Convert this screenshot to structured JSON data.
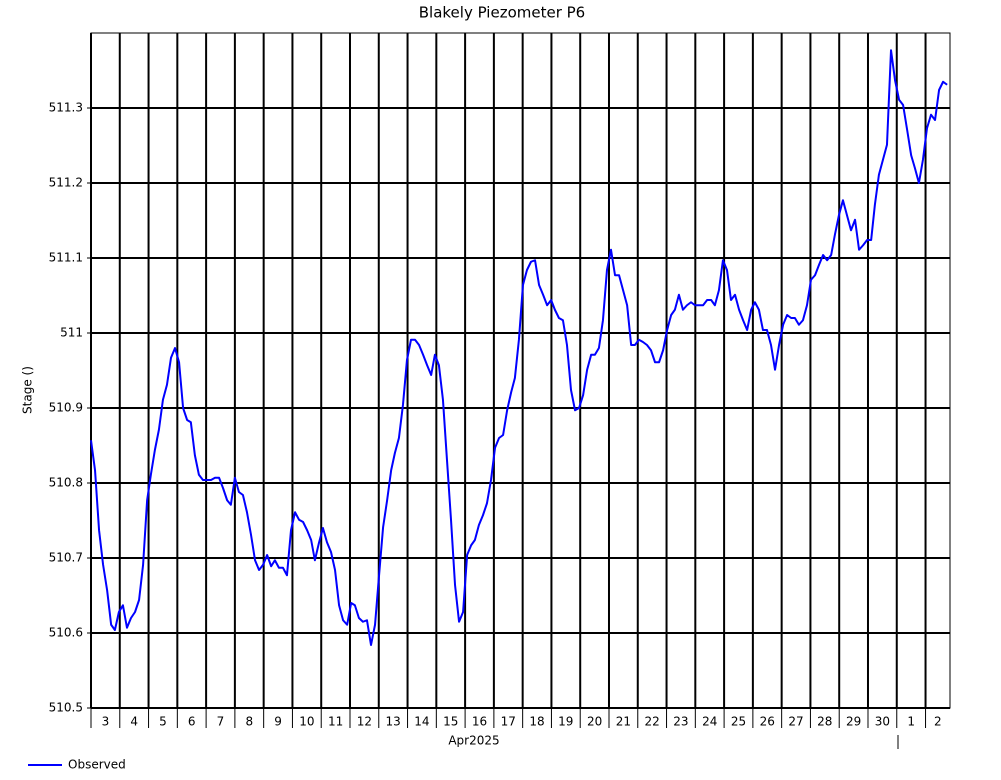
{
  "chart_data": {
    "type": "line",
    "title": "Blakely Piezometer P6",
    "ylabel": "Stage ()",
    "xlabel": "Apr2025",
    "grid": true,
    "legend": "bottom-left",
    "xlim": [
      3,
      32.85
    ],
    "ylim": [
      510.5,
      511.4
    ],
    "yticks": [
      510.5,
      510.6,
      510.7,
      510.8,
      510.9,
      511.0,
      511.1,
      511.2,
      511.3
    ],
    "xticks": [
      3,
      4,
      5,
      6,
      7,
      8,
      9,
      10,
      11,
      12,
      13,
      14,
      15,
      16,
      17,
      18,
      19,
      20,
      21,
      22,
      23,
      24,
      25,
      26,
      27,
      28,
      29,
      30,
      {
        "value": 31,
        "label": "1"
      },
      {
        "value": 32,
        "label": "2"
      }
    ],
    "x": [
      3.0,
      3.14,
      3.28,
      3.42,
      3.56,
      3.7,
      3.83,
      3.97,
      4.11,
      4.25,
      4.39,
      4.53,
      4.67,
      4.81,
      4.95,
      5.08,
      5.22,
      5.36,
      5.5,
      5.64,
      5.78,
      5.92,
      6.06,
      6.2,
      6.34,
      6.47,
      6.61,
      6.75,
      6.89,
      7.03,
      7.17,
      7.31,
      7.45,
      7.59,
      7.73,
      7.86,
      8.0,
      8.14,
      8.28,
      8.42,
      8.56,
      8.7,
      8.84,
      8.98,
      9.12,
      9.26,
      9.39,
      9.53,
      9.67,
      9.81,
      9.95,
      10.09,
      10.23,
      10.37,
      10.51,
      10.65,
      10.78,
      10.92,
      11.06,
      11.2,
      11.34,
      11.48,
      11.62,
      11.76,
      11.9,
      12.04,
      12.17,
      12.31,
      12.45,
      12.59,
      12.73,
      12.87,
      13.01,
      13.15,
      13.29,
      13.43,
      13.56,
      13.7,
      13.84,
      13.98,
      14.12,
      14.26,
      14.4,
      14.54,
      14.68,
      14.82,
      14.95,
      15.09,
      15.23,
      15.37,
      15.51,
      15.65,
      15.79,
      15.93,
      16.07,
      16.21,
      16.34,
      16.48,
      16.62,
      16.76,
      16.9,
      17.04,
      17.18,
      17.32,
      17.46,
      17.6,
      17.73,
      17.87,
      18.01,
      18.15,
      18.29,
      18.43,
      18.57,
      18.71,
      18.85,
      18.99,
      19.12,
      19.26,
      19.4,
      19.54,
      19.68,
      19.82,
      19.96,
      20.1,
      20.24,
      20.38,
      20.51,
      20.65,
      20.79,
      20.93,
      21.07,
      21.21,
      21.35,
      21.49,
      21.63,
      21.77,
      21.9,
      22.04,
      22.18,
      22.32,
      22.46,
      22.6,
      22.74,
      22.88,
      23.02,
      23.16,
      23.29,
      23.43,
      23.57,
      23.71,
      23.85,
      23.99,
      24.13,
      24.27,
      24.41,
      24.55,
      24.68,
      24.82,
      24.96,
      25.1,
      25.24,
      25.38,
      25.52,
      25.66,
      25.8,
      25.94,
      26.07,
      26.21,
      26.35,
      26.49,
      26.63,
      26.77,
      26.91,
      27.05,
      27.19,
      27.33,
      27.46,
      27.6,
      27.74,
      27.88,
      28.02,
      28.16,
      28.3,
      28.44,
      28.58,
      28.72,
      28.85,
      28.99,
      29.13,
      29.27,
      29.41,
      29.55,
      29.69,
      29.83,
      29.97,
      30.11,
      30.24,
      30.38,
      30.52,
      30.66,
      30.8,
      30.94,
      31.08,
      31.22,
      31.36,
      31.5,
      31.63,
      31.77,
      31.91,
      32.05,
      32.19,
      32.33,
      32.47,
      32.61,
      32.75
    ],
    "series": [
      {
        "name": "Observed",
        "color": "#0000ff",
        "values": [
          510.857,
          510.817,
          510.737,
          510.691,
          510.657,
          510.611,
          510.604,
          510.628,
          510.637,
          510.607,
          510.62,
          510.628,
          510.644,
          510.691,
          510.777,
          510.811,
          510.844,
          510.871,
          510.911,
          510.931,
          510.967,
          510.98,
          510.961,
          510.9,
          510.884,
          510.881,
          510.837,
          510.811,
          510.804,
          510.804,
          510.804,
          510.807,
          510.807,
          510.793,
          510.777,
          510.771,
          510.807,
          510.788,
          510.784,
          510.761,
          510.731,
          510.697,
          510.684,
          510.691,
          510.704,
          510.689,
          510.697,
          510.687,
          510.687,
          510.677,
          510.737,
          510.761,
          510.751,
          510.748,
          510.737,
          510.724,
          510.697,
          510.72,
          510.74,
          510.721,
          510.708,
          510.684,
          510.637,
          510.617,
          510.611,
          510.64,
          510.637,
          510.62,
          510.615,
          510.617,
          510.584,
          510.611,
          510.677,
          510.741,
          510.777,
          510.817,
          510.84,
          510.86,
          510.904,
          510.964,
          510.991,
          510.991,
          510.984,
          510.971,
          510.957,
          510.944,
          510.971,
          510.957,
          510.911,
          510.831,
          510.751,
          510.664,
          510.615,
          510.628,
          510.704,
          510.717,
          510.724,
          510.744,
          510.757,
          510.773,
          510.804,
          510.847,
          510.86,
          510.864,
          510.897,
          510.921,
          510.94,
          510.991,
          511.064,
          511.084,
          511.095,
          511.097,
          511.064,
          511.051,
          511.037,
          511.044,
          511.031,
          511.02,
          511.017,
          510.984,
          510.924,
          510.897,
          510.9,
          510.917,
          510.951,
          510.971,
          510.971,
          510.98,
          511.017,
          511.084,
          511.111,
          511.077,
          511.077,
          511.057,
          511.037,
          510.984,
          510.984,
          510.991,
          510.988,
          510.984,
          510.977,
          510.961,
          510.961,
          510.977,
          511.004,
          511.024,
          511.031,
          511.051,
          511.031,
          511.037,
          511.041,
          511.037,
          511.037,
          511.037,
          511.044,
          511.044,
          511.037,
          511.057,
          511.097,
          511.084,
          511.044,
          511.051,
          511.031,
          511.017,
          511.004,
          511.031,
          511.041,
          511.031,
          511.004,
          511.004,
          510.984,
          510.951,
          510.984,
          511.011,
          511.024,
          511.02,
          511.02,
          511.011,
          511.017,
          511.037,
          511.071,
          511.077,
          511.091,
          511.104,
          511.097,
          511.104,
          511.131,
          511.157,
          511.177,
          511.157,
          511.137,
          511.151,
          511.111,
          511.117,
          511.124,
          511.124,
          511.171,
          511.211,
          511.231,
          511.251,
          511.377,
          511.337,
          511.311,
          511.304,
          511.271,
          511.237,
          511.22,
          511.2,
          511.231,
          511.273,
          511.291,
          511.284,
          511.324,
          511.335,
          511.331
        ]
      }
    ]
  }
}
